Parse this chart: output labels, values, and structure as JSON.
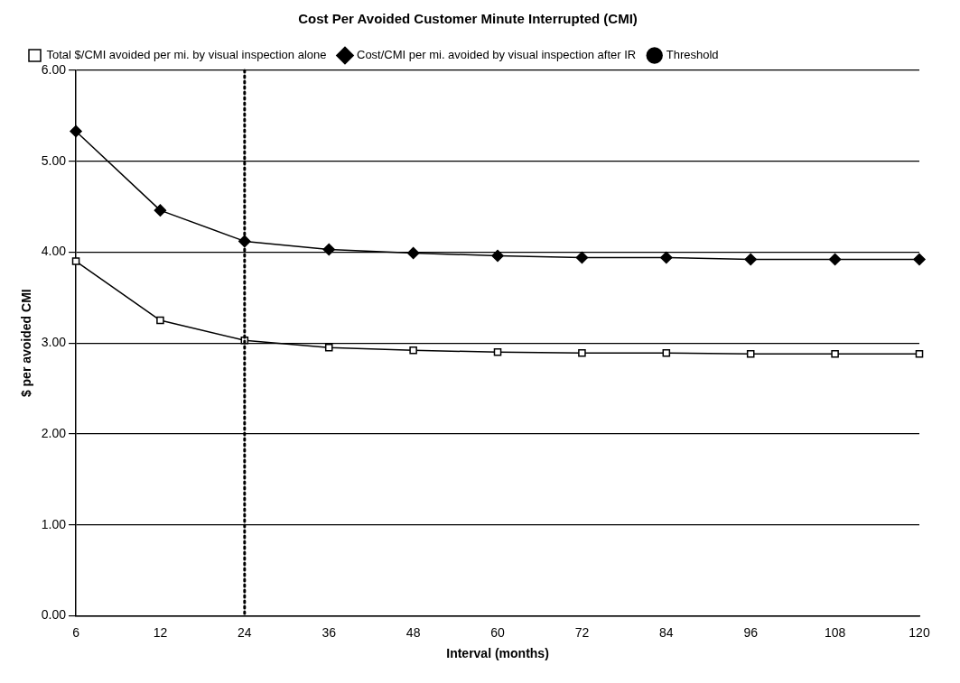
{
  "chart_data": {
    "type": "line",
    "title": "Cost Per Avoided Customer Minute Interrupted (CMI)",
    "xlabel": "Interval (months)",
    "ylabel": "$ per avoided CMI",
    "categories": [
      "6",
      "12",
      "24",
      "36",
      "48",
      "60",
      "72",
      "84",
      "96",
      "108",
      "120"
    ],
    "series": [
      {
        "name": "Total $/CMI avoided per mi. by visual inspection alone",
        "color": "#000000",
        "marker": "square",
        "values": [
          3.9,
          3.25,
          3.03,
          2.95,
          2.92,
          2.9,
          2.89,
          2.89,
          2.88,
          2.88,
          2.88
        ]
      },
      {
        "name": "Cost/CMI per mi. avoided by visual inspection after IR",
        "color": "#000000",
        "marker": "diamond",
        "values": [
          5.33,
          4.46,
          4.12,
          4.03,
          3.99,
          3.96,
          3.94,
          3.94,
          3.92,
          3.92,
          3.92
        ]
      }
    ],
    "ref_lines": [
      {
        "axis": "x",
        "value": "24",
        "label": "Threshold",
        "color": "#000000",
        "line_style": "dotted"
      }
    ],
    "ylim": [
      0,
      6
    ],
    "yticks": [
      {
        "value": 0,
        "label": "0.00"
      },
      {
        "value": 1,
        "label": "1.00"
      },
      {
        "value": 2,
        "label": "2.00"
      },
      {
        "value": 3,
        "label": "3.00"
      },
      {
        "value": 4,
        "label": "4.00"
      },
      {
        "value": 5,
        "label": "5.00"
      },
      {
        "value": 6,
        "label": "6.00"
      }
    ],
    "grid": "y",
    "legend": "top",
    "line_style": "solid"
  }
}
